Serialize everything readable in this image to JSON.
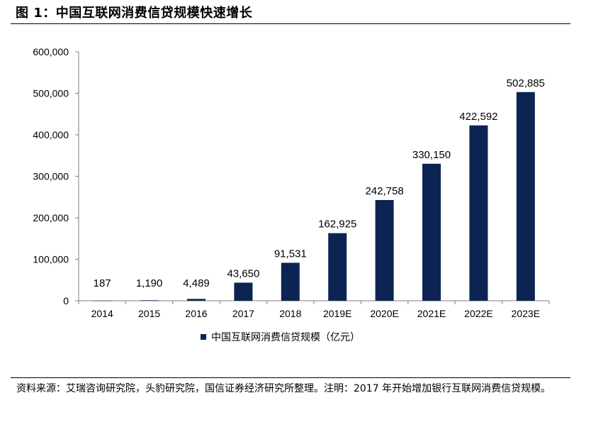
{
  "figure": {
    "title": "图 1：中国互联网消费信贷规模快速增长",
    "source_note": "资料来源：艾瑞咨询研究院，头豹研究院，国信证券经济研究所整理。注明：2017 年开始增加银行互联网消费信贷规模。"
  },
  "chart_data": {
    "type": "bar",
    "categories": [
      "2014",
      "2015",
      "2016",
      "2017",
      "2018",
      "2019E",
      "2020E",
      "2021E",
      "2022E",
      "2023E"
    ],
    "series": [
      {
        "name": "中国互联网消费信贷规模（亿元）",
        "values": [
          187,
          1190,
          4489,
          43650,
          91531,
          162925,
          242758,
          330150,
          422592,
          502885
        ]
      }
    ],
    "data_labels": [
      "187",
      "1,190",
      "4,489",
      "43,650",
      "91,531",
      "162,925",
      "242,758",
      "330,150",
      "422,592",
      "502,885"
    ],
    "y_ticks": [
      "0",
      "100,000",
      "200,000",
      "300,000",
      "400,000",
      "500,000",
      "600,000"
    ],
    "ylim": [
      0,
      600000
    ],
    "legend_position": "bottom",
    "grid": false,
    "bar_color": "#0b2452"
  }
}
